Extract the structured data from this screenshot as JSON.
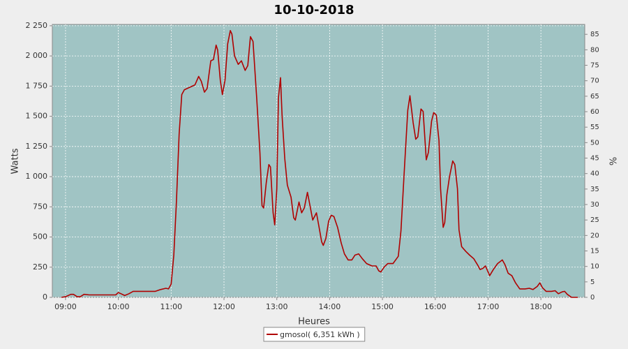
{
  "chart_data": {
    "type": "line",
    "title": "10-10-2018",
    "x_label": "Heures",
    "y_label": "Watts",
    "y2_label": "%",
    "x": [
      8.92,
      9.0,
      9.1,
      9.15,
      9.22,
      9.28,
      9.35,
      9.45,
      9.7,
      9.95,
      10.0,
      10.05,
      10.12,
      10.2,
      10.28,
      10.5,
      10.7,
      10.8,
      10.9,
      10.95,
      11.0,
      11.05,
      11.1,
      11.15,
      11.2,
      11.25,
      11.35,
      11.45,
      11.52,
      11.57,
      11.63,
      11.68,
      11.75,
      11.8,
      11.85,
      11.88,
      11.93,
      11.97,
      12.02,
      12.07,
      12.12,
      12.15,
      12.2,
      12.27,
      12.33,
      12.4,
      12.45,
      12.5,
      12.55,
      12.62,
      12.68,
      12.72,
      12.75,
      12.8,
      12.85,
      12.88,
      12.93,
      12.96,
      13.0,
      13.03,
      13.07,
      13.1,
      13.15,
      13.2,
      13.27,
      13.32,
      13.35,
      13.42,
      13.47,
      13.52,
      13.58,
      13.62,
      13.68,
      13.75,
      13.8,
      13.85,
      13.88,
      13.93,
      13.98,
      14.03,
      14.08,
      14.15,
      14.22,
      14.28,
      14.35,
      14.42,
      14.48,
      14.55,
      14.62,
      14.7,
      14.8,
      14.88,
      14.93,
      14.97,
      15.03,
      15.1,
      15.2,
      15.3,
      15.35,
      15.42,
      15.48,
      15.52,
      15.58,
      15.63,
      15.67,
      15.73,
      15.77,
      15.83,
      15.87,
      15.93,
      15.97,
      16.02,
      16.07,
      16.1,
      16.15,
      16.18,
      16.22,
      16.27,
      16.33,
      16.37,
      16.42,
      16.45,
      16.5,
      16.58,
      16.65,
      16.73,
      16.8,
      16.85,
      16.9,
      16.95,
      17.0,
      17.03,
      17.1,
      17.18,
      17.27,
      17.32,
      17.38,
      17.45,
      17.52,
      17.6,
      17.7,
      17.78,
      17.85,
      17.93,
      17.98,
      18.03,
      18.1,
      18.2,
      18.27,
      18.33,
      18.4,
      18.45,
      18.5,
      18.58,
      18.7
    ],
    "series": [
      {
        "name": "gmosol( 6,351 kWh )",
        "color": "#b00000",
        "values": [
          0,
          5,
          25,
          25,
          5,
          5,
          25,
          20,
          20,
          20,
          40,
          30,
          15,
          30,
          50,
          50,
          50,
          65,
          75,
          70,
          110,
          350,
          800,
          1350,
          1680,
          1720,
          1740,
          1760,
          1830,
          1790,
          1700,
          1730,
          1960,
          1970,
          2090,
          2050,
          1800,
          1680,
          1800,
          2100,
          2210,
          2180,
          2000,
          1930,
          1960,
          1880,
          1920,
          2160,
          2120,
          1650,
          1200,
          760,
          740,
          950,
          1100,
          1080,
          700,
          600,
          900,
          1650,
          1820,
          1500,
          1150,
          930,
          830,
          660,
          640,
          790,
          700,
          740,
          870,
          780,
          640,
          700,
          580,
          460,
          430,
          490,
          630,
          680,
          670,
          580,
          450,
          360,
          310,
          310,
          350,
          360,
          320,
          280,
          260,
          260,
          220,
          210,
          250,
          280,
          280,
          340,
          550,
          1100,
          1550,
          1670,
          1450,
          1310,
          1330,
          1560,
          1540,
          1140,
          1200,
          1460,
          1530,
          1510,
          1300,
          900,
          580,
          620,
          850,
          1000,
          1130,
          1100,
          900,
          560,
          420,
          380,
          350,
          320,
          270,
          230,
          240,
          260,
          210,
          180,
          230,
          280,
          310,
          270,
          200,
          180,
          120,
          70,
          70,
          75,
          65,
          90,
          120,
          80,
          50,
          50,
          55,
          30,
          45,
          50,
          25,
          0,
          0
        ]
      }
    ],
    "xlim": [
      8.75,
      18.83
    ],
    "xticks": [
      {
        "value": 9,
        "label": "09:00"
      },
      {
        "value": 10,
        "label": "10:00"
      },
      {
        "value": 11,
        "label": "11:00"
      },
      {
        "value": 12,
        "label": "12:00"
      },
      {
        "value": 13,
        "label": "13:00"
      },
      {
        "value": 14,
        "label": "14:00"
      },
      {
        "value": 15,
        "label": "15:00"
      },
      {
        "value": 16,
        "label": "16:00"
      },
      {
        "value": 17,
        "label": "17:00"
      },
      {
        "value": 18,
        "label": "18:00"
      }
    ],
    "ylim": [
      0,
      2261
    ],
    "yticks": [
      0,
      250,
      500,
      750,
      {
        "value": 1000,
        "label": "1 000"
      },
      {
        "value": 1250,
        "label": "1 250"
      },
      {
        "value": 1500,
        "label": "1 500"
      },
      {
        "value": 1750,
        "label": "1 750"
      },
      {
        "value": 2000,
        "label": "2 000"
      },
      {
        "value": 2250,
        "label": "2 250"
      }
    ],
    "y2lim": [
      0,
      88.2
    ],
    "y2ticks": [
      0,
      5,
      10,
      15,
      20,
      25,
      30,
      35,
      40,
      45,
      50,
      55,
      60,
      65,
      70,
      75,
      80,
      85
    ],
    "grid": true,
    "plot_background": "#a0c4c4"
  }
}
